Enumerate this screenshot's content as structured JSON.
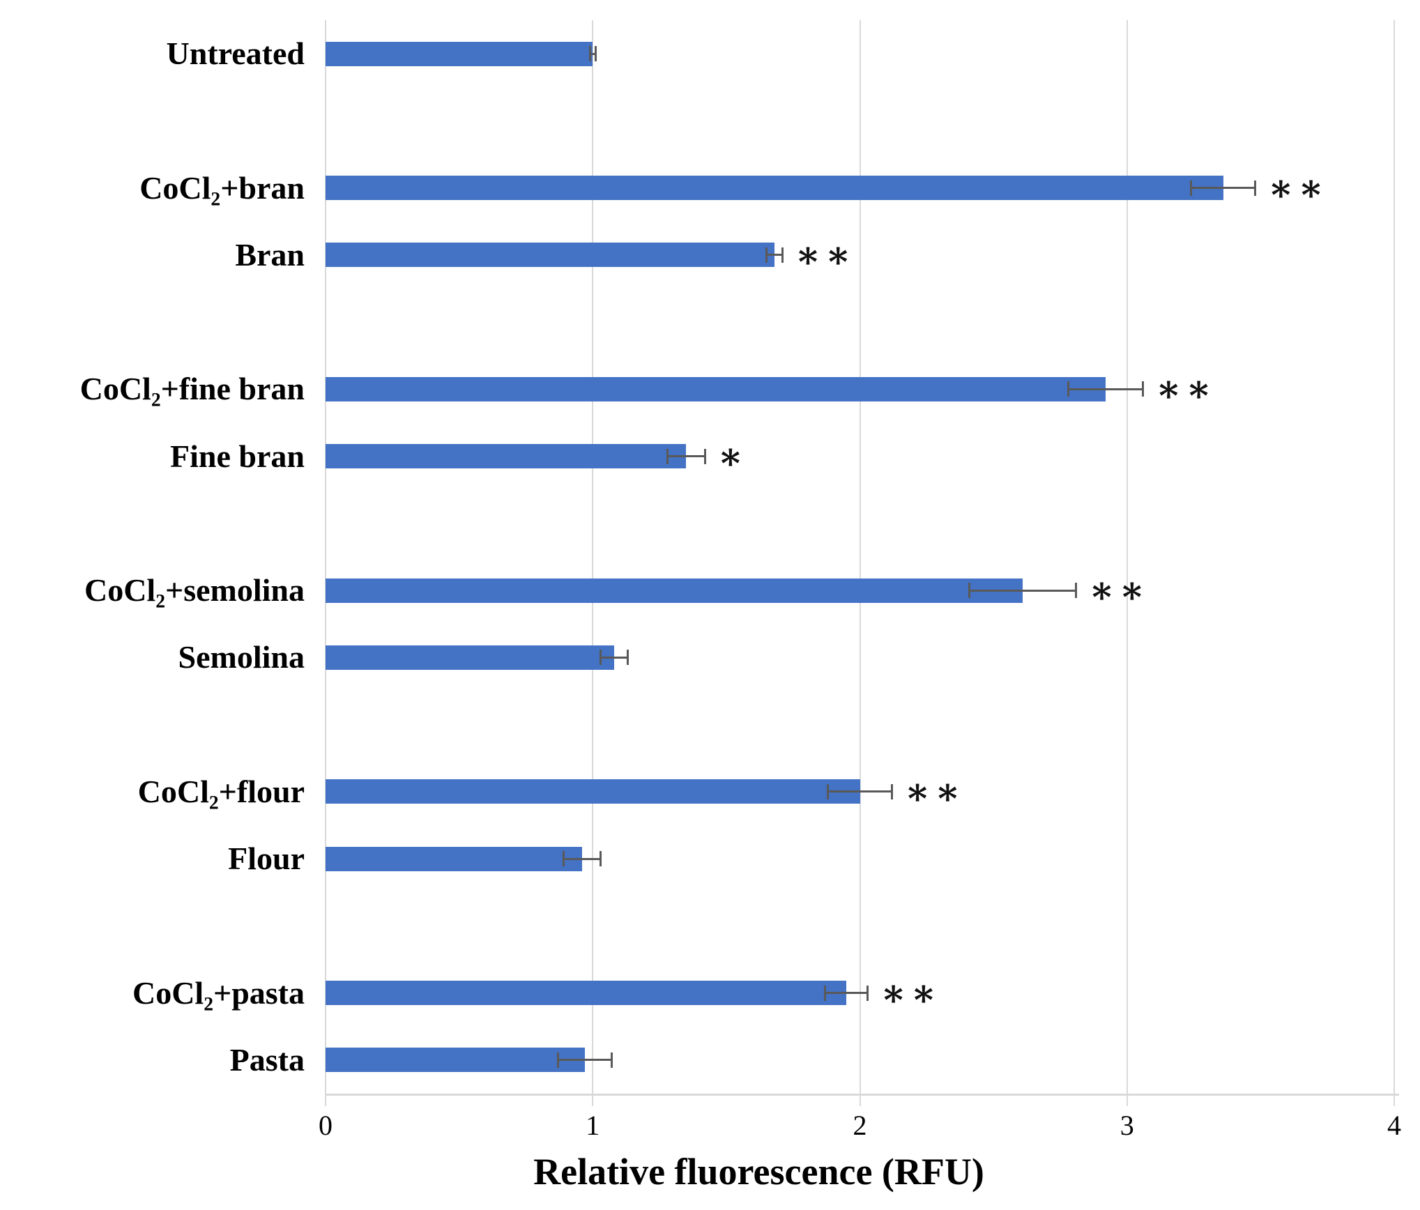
{
  "chart_data": {
    "type": "bar",
    "orientation": "horizontal",
    "title": "",
    "xlabel": "Relative fluorescence (RFU)",
    "ylabel": "",
    "xlim": [
      0,
      4
    ],
    "xticks": [
      0,
      1,
      2,
      3,
      4
    ],
    "grid": "vertical gridlines on",
    "legend": "none",
    "bar_color": "#4472C4",
    "error_bar_color": "#595959",
    "gridline_color": "#D9D9D9",
    "categories": [
      "Untreated",
      "CoCl₂+bran",
      "Bran",
      "CoCl₂+fine bran",
      "Fine bran",
      "CoCl₂+semolina",
      "Semolina",
      "CoCl₂+flour",
      "Flour",
      "CoCl₂+pasta",
      "Pasta"
    ],
    "values": [
      1.0,
      3.36,
      1.68,
      2.92,
      1.35,
      2.61,
      1.08,
      2.0,
      0.96,
      1.95,
      0.97
    ],
    "errors": [
      0.01,
      0.12,
      0.03,
      0.14,
      0.07,
      0.2,
      0.05,
      0.12,
      0.07,
      0.08,
      0.1
    ],
    "significance": [
      "",
      "**",
      "**",
      "**",
      "*",
      "**",
      "",
      "**",
      "",
      "**",
      ""
    ],
    "layout": {
      "slots": 16,
      "slot_index": [
        0,
        2,
        3,
        5,
        6,
        8,
        9,
        11,
        12,
        14,
        15
      ],
      "note": "blank category slots separate treatment groups"
    }
  }
}
